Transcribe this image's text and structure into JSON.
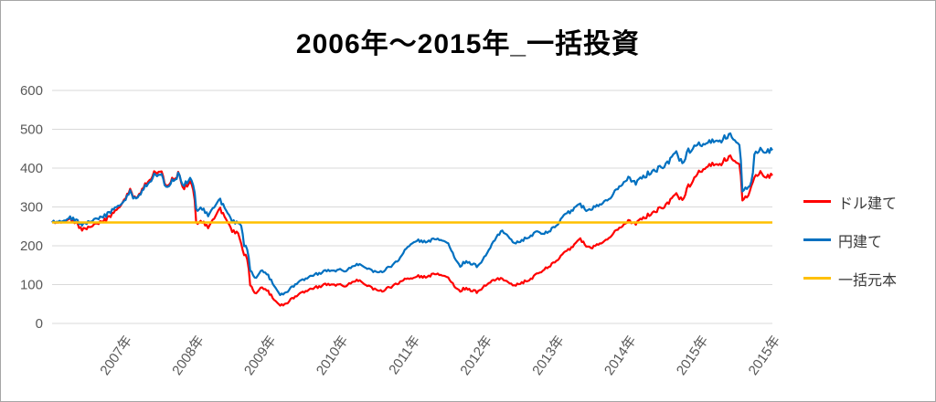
{
  "title": "2006年～2015年_一括投資",
  "chart_data": {
    "type": "line",
    "title": "2006年～2015年_一括投資",
    "granularity": "monthly",
    "x_axis": {
      "labels": [
        "2007年",
        "2008年",
        "2009年",
        "2010年",
        "2011年",
        "2012年",
        "2013年",
        "2014年",
        "2015年",
        "2015年"
      ],
      "label_rotation_deg": -55
    },
    "y_axis": {
      "min": 0,
      "max": 600,
      "step": 100,
      "ticks": [
        0,
        100,
        200,
        300,
        400,
        500,
        600
      ]
    },
    "grid": "horizontal",
    "legend_position": "right",
    "colors": {
      "grid": "#d9d9d9",
      "axis_text": "#595959",
      "frame": "#a6a6a6"
    },
    "series": [
      {
        "name": "ドル建て",
        "color": "#ff0000",
        "values": [
          260,
          262,
          266,
          271,
          258,
          241,
          247,
          252,
          259,
          268,
          281,
          297,
          316,
          341,
          318,
          347,
          367,
          387,
          396,
          352,
          373,
          384,
          348,
          363,
          258,
          263,
          246,
          272,
          294,
          268,
          238,
          231,
          178,
          98,
          76,
          93,
          82,
          60,
          45,
          50,
          63,
          73,
          81,
          88,
          93,
          97,
          101,
          99,
          102,
          96,
          107,
          112,
          104,
          93,
          85,
          84,
          91,
          98,
          107,
          114,
          117,
          122,
          119,
          124,
          127,
          121,
          119,
          95,
          85,
          92,
          84,
          81,
          96,
          107,
          113,
          117,
          104,
          96,
          103,
          110,
          118,
          128,
          139,
          150,
          162,
          176,
          189,
          203,
          218,
          199,
          196,
          206,
          213,
          226,
          239,
          251,
          263,
          256,
          266,
          276,
          284,
          294,
          302,
          316,
          332,
          318,
          352,
          374,
          391,
          403,
          413,
          408,
          419,
          425,
          419,
          318,
          331,
          372,
          393,
          376,
          381
        ]
      },
      {
        "name": "円建て",
        "color": "#0070c0",
        "values": [
          260,
          264,
          268,
          273,
          265,
          254,
          261,
          265,
          271,
          279,
          291,
          303,
          313,
          337,
          317,
          343,
          362,
          381,
          388,
          349,
          369,
          382,
          356,
          372,
          292,
          297,
          277,
          301,
          317,
          291,
          263,
          257,
          201,
          136,
          116,
          137,
          123,
          96,
          72,
          79,
          93,
          105,
          113,
          121,
          127,
          131,
          137,
          135,
          141,
          135,
          147,
          153,
          148,
          137,
          131,
          134,
          143,
          153,
          169,
          192,
          208,
          214,
          210,
          214,
          217,
          211,
          207,
          170,
          149,
          161,
          153,
          147,
          170,
          196,
          221,
          241,
          222,
          205,
          211,
          221,
          229,
          235,
          231,
          241,
          253,
          271,
          285,
          297,
          307,
          291,
          297,
          307,
          316,
          327,
          343,
          359,
          373,
          361,
          371,
          383,
          391,
          399,
          407,
          421,
          439,
          413,
          443,
          456,
          459,
          465,
          473,
          469,
          477,
          481,
          472,
          341,
          353,
          431,
          453,
          441,
          446
        ]
      },
      {
        "name": "一括元本",
        "color": "#ffc000",
        "constant": 260
      }
    ]
  }
}
